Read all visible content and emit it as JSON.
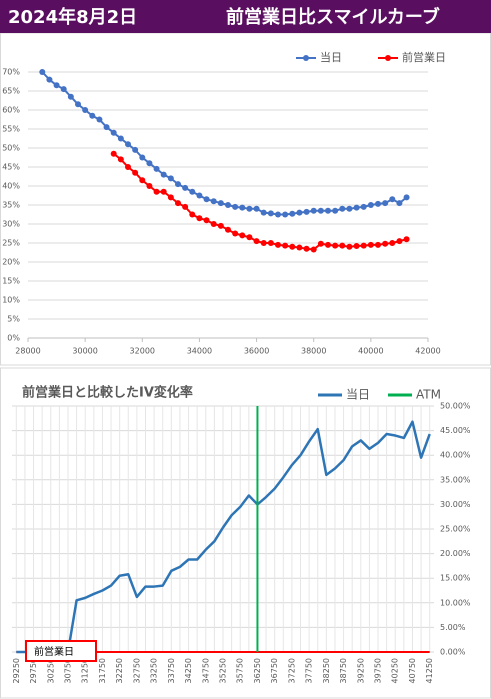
{
  "header": {
    "date": "2024年8月2日",
    "title": "前営業日比スマイルカーブ"
  },
  "chart_data": [
    {
      "type": "line",
      "markers": true,
      "grid": true,
      "legend": "top-right",
      "x": [
        28500,
        28750,
        29000,
        29250,
        29500,
        29750,
        30000,
        30250,
        30500,
        30750,
        31000,
        31250,
        31500,
        31750,
        32000,
        32250,
        32500,
        32750,
        33000,
        33250,
        33500,
        33750,
        34000,
        34250,
        34500,
        34750,
        35000,
        35250,
        35500,
        35750,
        36000,
        36250,
        36500,
        36750,
        37000,
        37250,
        37500,
        37750,
        38000,
        38250,
        38500,
        38750,
        39000,
        39250,
        39500,
        39750,
        40000,
        40250,
        40500,
        40750,
        41000,
        41250
      ],
      "xlim": [
        28000,
        42000
      ],
      "xticks": [
        28000,
        30000,
        32000,
        34000,
        36000,
        38000,
        40000,
        42000
      ],
      "ylim": [
        0,
        70
      ],
      "yticks": [
        {
          "value": 0,
          "label": "0%"
        },
        {
          "value": 5,
          "label": "5%"
        },
        {
          "value": 10,
          "label": "10%"
        },
        {
          "value": 15,
          "label": "15%"
        },
        {
          "value": 20,
          "label": "20%"
        },
        {
          "value": 25,
          "label": "25%"
        },
        {
          "value": 30,
          "label": "30%"
        },
        {
          "value": 35,
          "label": "35%"
        },
        {
          "value": 40,
          "label": "40%"
        },
        {
          "value": 45,
          "label": "45%"
        },
        {
          "value": 50,
          "label": "50%"
        },
        {
          "value": 55,
          "label": "55%"
        },
        {
          "value": 60,
          "label": "60%"
        },
        {
          "value": 65,
          "label": "65%"
        },
        {
          "value": 70,
          "label": "70%"
        }
      ],
      "series": [
        {
          "name": "当日",
          "color": "#4472c4",
          "values": [
            70,
            68,
            66.5,
            65.5,
            63.5,
            61.5,
            60,
            58.5,
            57.5,
            55.5,
            54,
            52.5,
            51,
            49.5,
            47.5,
            46,
            44.5,
            43,
            42,
            40.5,
            39.5,
            38.5,
            37.5,
            36.5,
            36,
            35.5,
            35,
            34.5,
            34.3,
            34,
            34,
            33,
            32.8,
            32.5,
            32.5,
            32.7,
            33,
            33.2,
            33.5,
            33.5,
            33.5,
            33.5,
            34,
            34,
            34.3,
            34.5,
            35,
            35.3,
            35.5,
            36.5,
            35.5,
            37
          ]
        },
        {
          "name": "前営業日",
          "color": "#ff0000",
          "values": [
            null,
            null,
            null,
            null,
            null,
            null,
            null,
            null,
            null,
            null,
            48.5,
            47,
            45,
            43.5,
            41.5,
            40,
            38.5,
            38.5,
            37,
            35.5,
            34.5,
            32.5,
            31.5,
            31,
            30,
            29.5,
            28.5,
            27.5,
            27,
            26.5,
            25.5,
            25,
            25,
            24.5,
            24.3,
            24,
            23.8,
            23.5,
            23.3,
            24.8,
            24.5,
            24.3,
            24.3,
            24,
            24.2,
            24.3,
            24.5,
            24.5,
            24.8,
            25,
            25.5,
            26
          ]
        }
      ]
    },
    {
      "type": "line",
      "title": "前営業日と比較したIV変化率",
      "grid": true,
      "legend": "top",
      "y_axis_side": "right",
      "categories": [
        "29250",
        null,
        "29750",
        null,
        "30250",
        null,
        "30750",
        null,
        "31250",
        null,
        "31750",
        null,
        "32250",
        null,
        "32750",
        null,
        "33250",
        null,
        "33750",
        null,
        "34250",
        null,
        "34750",
        null,
        "35250",
        null,
        "35750",
        null,
        "36250",
        null,
        "36750",
        null,
        "37250",
        null,
        "37750",
        null,
        "38250",
        null,
        "38750",
        null,
        "39250",
        null,
        "39750",
        null,
        "40250",
        null,
        "40750",
        null,
        "41250"
      ],
      "ylim": [
        0,
        50
      ],
      "yticks": [
        {
          "value": 0,
          "label": "0.00%"
        },
        {
          "value": 5,
          "label": "5.00%"
        },
        {
          "value": 10,
          "label": "10.00%"
        },
        {
          "value": 15,
          "label": "15.00%"
        },
        {
          "value": 20,
          "label": "20.00%"
        },
        {
          "value": 25,
          "label": "25.00%"
        },
        {
          "value": 30,
          "label": "30.00%"
        },
        {
          "value": 35,
          "label": "35.00%"
        },
        {
          "value": 40,
          "label": "40.00%"
        },
        {
          "value": 45,
          "label": "45.00%"
        },
        {
          "value": 50,
          "label": "50.00%"
        }
      ],
      "series": [
        {
          "name": "当日",
          "color": "#2e75b6",
          "values": [
            0,
            0,
            0,
            0,
            0,
            0,
            0,
            10.5,
            11,
            11.8,
            12.5,
            13.5,
            15.5,
            15.8,
            11.2,
            13.3,
            13.3,
            13.5,
            16.5,
            17.3,
            18.8,
            18.8,
            20.8,
            22.5,
            25.3,
            27.8,
            29.5,
            31.8,
            30,
            31.5,
            33.2,
            35.5,
            38,
            40,
            42.8,
            45.3,
            36,
            37.3,
            39,
            41.8,
            43,
            41.3,
            42.5,
            44.3,
            44,
            43.5,
            46.8,
            39.5,
            44.3
          ]
        },
        {
          "name": "前営業日",
          "color": "#ff0000",
          "legend": false,
          "values": [
            0,
            0,
            0,
            0,
            0,
            0,
            0,
            0,
            0,
            0,
            0,
            0,
            0,
            0,
            0,
            0,
            0,
            0,
            0,
            0,
            0,
            0,
            0,
            0,
            0,
            0,
            0,
            0,
            0,
            0,
            0,
            0,
            0,
            0,
            0,
            0,
            0,
            0,
            0,
            0,
            0,
            0,
            0,
            0,
            0,
            0,
            0,
            0,
            0
          ]
        }
      ],
      "atm": {
        "name": "ATM",
        "color": "#00b050",
        "x": 36250
      }
    }
  ]
}
